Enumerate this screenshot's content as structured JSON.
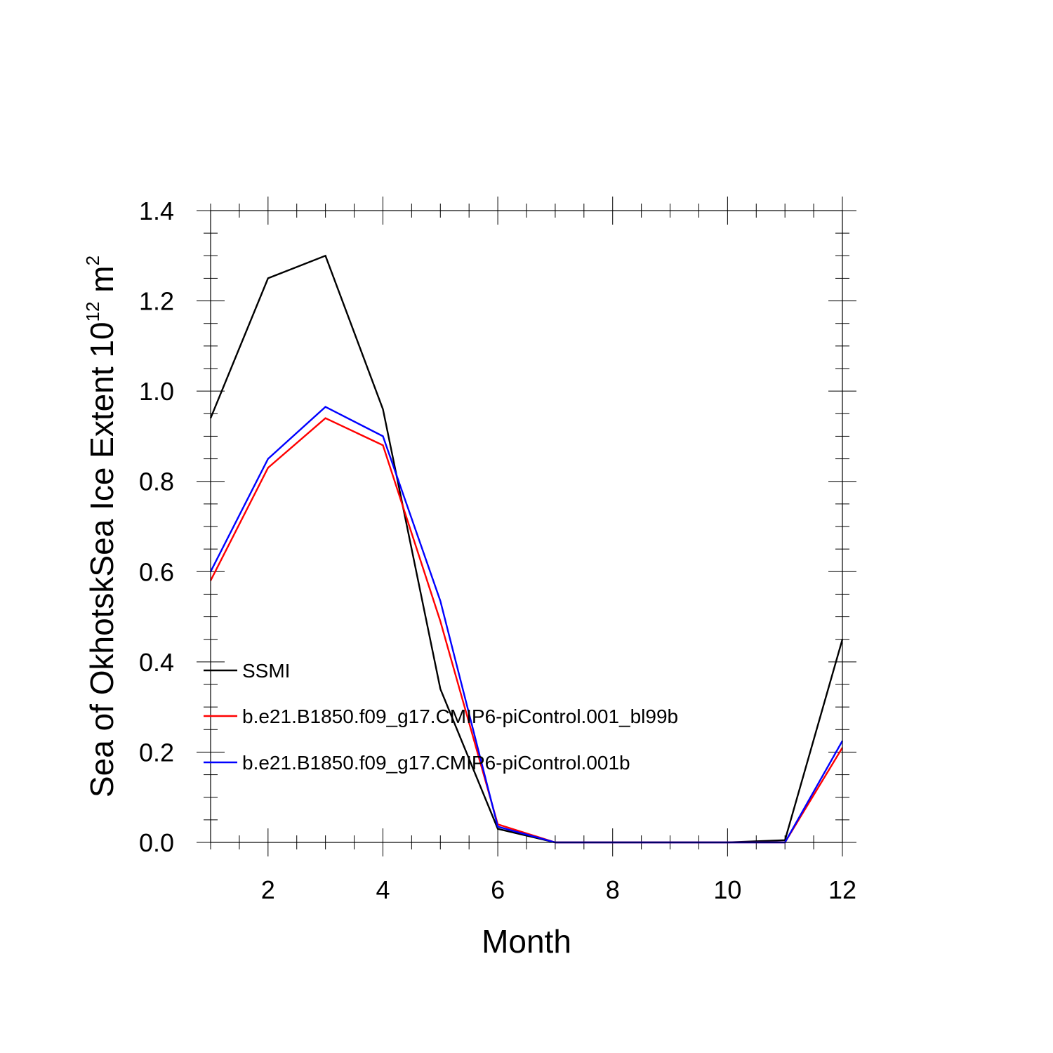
{
  "chart_data": {
    "type": "line",
    "title": "",
    "xlabel": "Month",
    "ylabel_prefix": "Sea of OkhotskSea Ice Extent 10",
    "ylabel_exp1": "12",
    "ylabel_unit": " m",
    "ylabel_exp2": "2",
    "xlim": [
      1,
      12
    ],
    "ylim": [
      0,
      1.4
    ],
    "xticks": [
      2,
      4,
      6,
      8,
      10,
      12
    ],
    "xtick_labels": [
      "2",
      "4",
      "6",
      "8",
      "10",
      "12"
    ],
    "yticks": [
      0,
      0.2,
      0.4,
      0.6,
      0.8,
      1.0,
      1.2,
      1.4
    ],
    "ytick_labels": [
      "0.0",
      "0.2",
      "0.4",
      "0.6",
      "0.8",
      "1.0",
      "1.2",
      "1.4"
    ],
    "x": [
      1,
      2,
      3,
      4,
      5,
      6,
      7,
      8,
      9,
      10,
      11,
      12
    ],
    "legend_position": "lower-left",
    "series": [
      {
        "name": "SSMI",
        "color": "#000000",
        "values": [
          0.94,
          1.25,
          1.3,
          0.96,
          0.34,
          0.03,
          0.0,
          0.0,
          0.0,
          0.0,
          0.005,
          0.45
        ]
      },
      {
        "name": "b.e21.B1850.f09_g17.CMIP6-piControl.001_bl99b",
        "color": "#ff0000",
        "values": [
          0.58,
          0.83,
          0.94,
          0.88,
          0.49,
          0.04,
          0.0,
          0.0,
          0.0,
          0.0,
          0.0,
          0.21
        ]
      },
      {
        "name": "b.e21.B1850.f09_g17.CMIP6-piControl.001b",
        "color": "#0000ff",
        "values": [
          0.6,
          0.85,
          0.965,
          0.9,
          0.535,
          0.035,
          0.0,
          0.0,
          0.0,
          0.0,
          0.0,
          0.225
        ]
      }
    ]
  }
}
